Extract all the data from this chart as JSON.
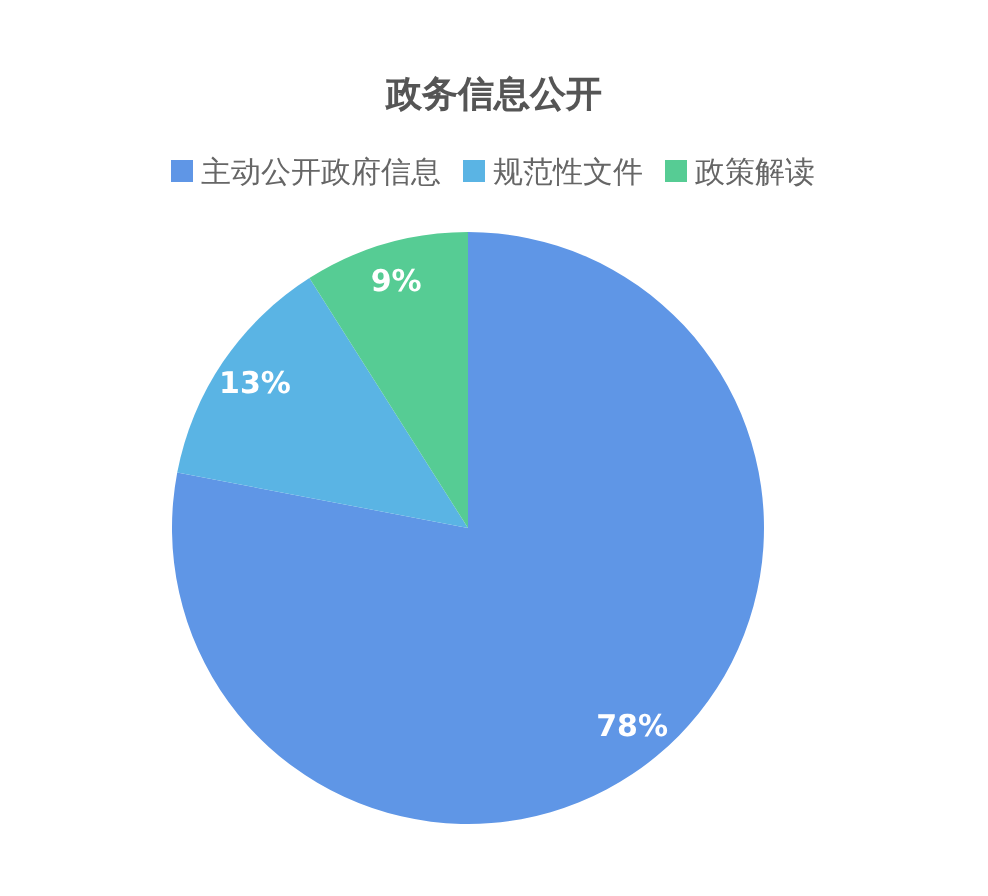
{
  "chart_data": {
    "type": "pie",
    "title": "政务信息公开",
    "categories": [
      "主动公开政府信息",
      "规范性文件",
      "政策解读"
    ],
    "values": [
      78,
      13,
      9
    ],
    "value_labels": [
      "78%",
      "13%",
      "9%"
    ],
    "colors": [
      "#5f96e6",
      "#5ab4e4",
      "#56cc94"
    ],
    "legend": "top"
  }
}
